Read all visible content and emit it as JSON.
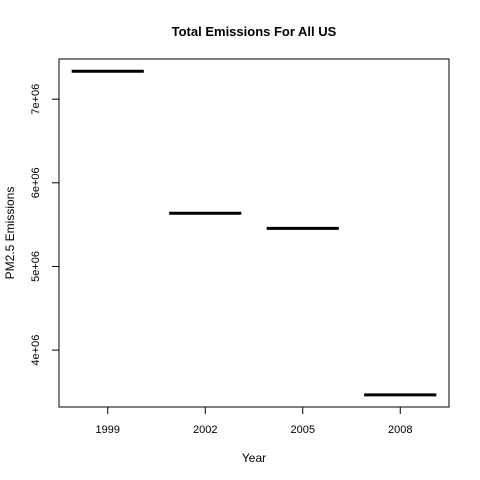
{
  "chart_data": {
    "type": "bar",
    "title": "Total Emissions For All US",
    "xlabel": "Year",
    "ylabel": "PM2.5 Emissions",
    "categories": [
      "1999",
      "2002",
      "2005",
      "2008"
    ],
    "values": [
      7332967,
      5635780,
      5454703,
      3464206
    ],
    "yticks": [
      4000000,
      5000000,
      6000000,
      7000000
    ],
    "ytick_labels": [
      "4e+06",
      "5e+06",
      "6e+06",
      "7e+06"
    ],
    "ylim": [
      3320000,
      7480000
    ],
    "grid": false,
    "legend": "none",
    "mark_color": "#000000"
  }
}
